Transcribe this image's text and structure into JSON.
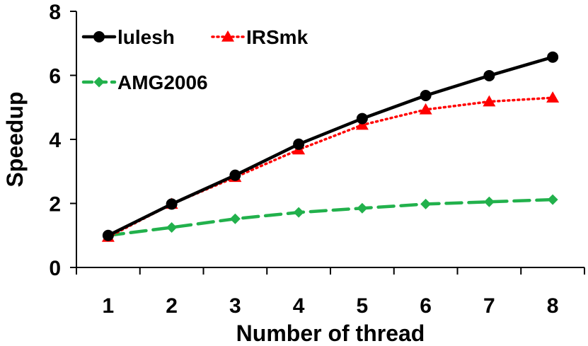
{
  "chart_data": {
    "type": "line",
    "xlabel": "Number of thread",
    "ylabel": "Speedup",
    "x": [
      1,
      2,
      3,
      4,
      5,
      6,
      7,
      8
    ],
    "xlim": [
      0.5,
      8.5
    ],
    "ylim": [
      0,
      8
    ],
    "yticks": [
      0,
      2,
      4,
      6,
      8
    ],
    "grid": false,
    "legend_position": "top-left",
    "series": [
      {
        "name": "lulesh",
        "values": [
          1.0,
          1.98,
          2.88,
          3.85,
          4.65,
          5.37,
          5.99,
          6.57
        ],
        "color": "#000000",
        "marker": "circle",
        "line": "solid"
      },
      {
        "name": "IRSmk",
        "values": [
          0.95,
          1.98,
          2.82,
          3.68,
          4.45,
          4.93,
          5.18,
          5.3
        ],
        "color": "#ff0000",
        "marker": "triangle",
        "line": "dotted"
      },
      {
        "name": "AMG2006",
        "values": [
          1.0,
          1.25,
          1.52,
          1.72,
          1.85,
          1.98,
          2.05,
          2.12
        ],
        "color": "#22b14c",
        "marker": "diamond",
        "line": "dashed"
      }
    ]
  }
}
